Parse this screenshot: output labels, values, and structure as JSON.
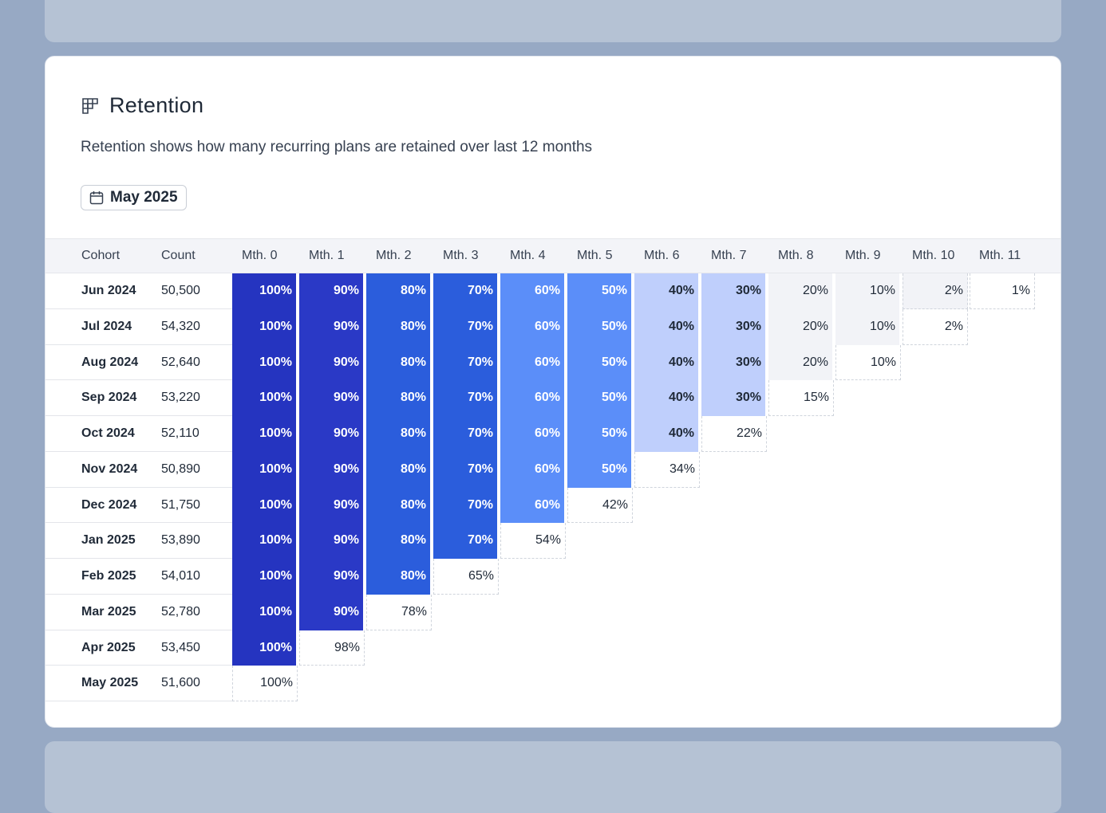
{
  "header": {
    "title": "Retention",
    "title_icon": "table-grid-icon",
    "subtitle": "Retention shows how many recurring plans are retained over last 12 months",
    "date_button": {
      "icon": "calendar-icon",
      "label": "May 2025"
    }
  },
  "table": {
    "columns": {
      "cohort": "Cohort",
      "count": "Count"
    },
    "month_headers": [
      "Mth. 0",
      "Mth. 1",
      "Mth. 2",
      "Mth. 3",
      "Mth. 4",
      "Mth. 5",
      "Mth. 6",
      "Mth. 7",
      "Mth. 8",
      "Mth. 9",
      "Mth. 10",
      "Mth. 11"
    ],
    "rows": [
      {
        "cohort": "Jun 2024",
        "count": "50,500",
        "values": [
          "100%",
          "90%",
          "80%",
          "70%",
          "60%",
          "50%",
          "40%",
          "30%",
          "20%",
          "10%",
          "2%",
          "1%"
        ]
      },
      {
        "cohort": "Jul 2024",
        "count": "54,320",
        "values": [
          "100%",
          "90%",
          "80%",
          "70%",
          "60%",
          "50%",
          "40%",
          "30%",
          "20%",
          "10%",
          "2%"
        ]
      },
      {
        "cohort": "Aug 2024",
        "count": "52,640",
        "values": [
          "100%",
          "90%",
          "80%",
          "70%",
          "60%",
          "50%",
          "40%",
          "30%",
          "20%",
          "10%"
        ]
      },
      {
        "cohort": "Sep 2024",
        "count": "53,220",
        "values": [
          "100%",
          "90%",
          "80%",
          "70%",
          "60%",
          "50%",
          "40%",
          "30%",
          "15%"
        ]
      },
      {
        "cohort": "Oct 2024",
        "count": "52,110",
        "values": [
          "100%",
          "90%",
          "80%",
          "70%",
          "60%",
          "50%",
          "40%",
          "22%"
        ]
      },
      {
        "cohort": "Nov 2024",
        "count": "50,890",
        "values": [
          "100%",
          "90%",
          "80%",
          "70%",
          "60%",
          "50%",
          "34%"
        ]
      },
      {
        "cohort": "Dec 2024",
        "count": "51,750",
        "values": [
          "100%",
          "90%",
          "80%",
          "70%",
          "60%",
          "42%"
        ]
      },
      {
        "cohort": "Jan 2025",
        "count": "53,890",
        "values": [
          "100%",
          "90%",
          "80%",
          "70%",
          "54%"
        ]
      },
      {
        "cohort": "Feb 2025",
        "count": "54,010",
        "values": [
          "100%",
          "90%",
          "80%",
          "65%"
        ]
      },
      {
        "cohort": "Mar 2025",
        "count": "52,780",
        "values": [
          "100%",
          "90%",
          "78%"
        ]
      },
      {
        "cohort": "Apr 2025",
        "count": "53,450",
        "values": [
          "100%",
          "98%"
        ]
      },
      {
        "cohort": "May 2025",
        "count": "51,600",
        "values": [
          "100%"
        ]
      }
    ]
  },
  "colors": {
    "page_bg": "#97a9c4",
    "card_bg": "#ffffff",
    "shade_100": "#2534c0",
    "shade_90": "#2a39c6",
    "shade_80_70": "#2b5ddc",
    "shade_60_50": "#5b8ef9",
    "shade_40_30": "#bfcffc",
    "shade_20_10": "#f2f3f7",
    "text_dark": "#1f2937",
    "text_light": "#ffffff"
  }
}
